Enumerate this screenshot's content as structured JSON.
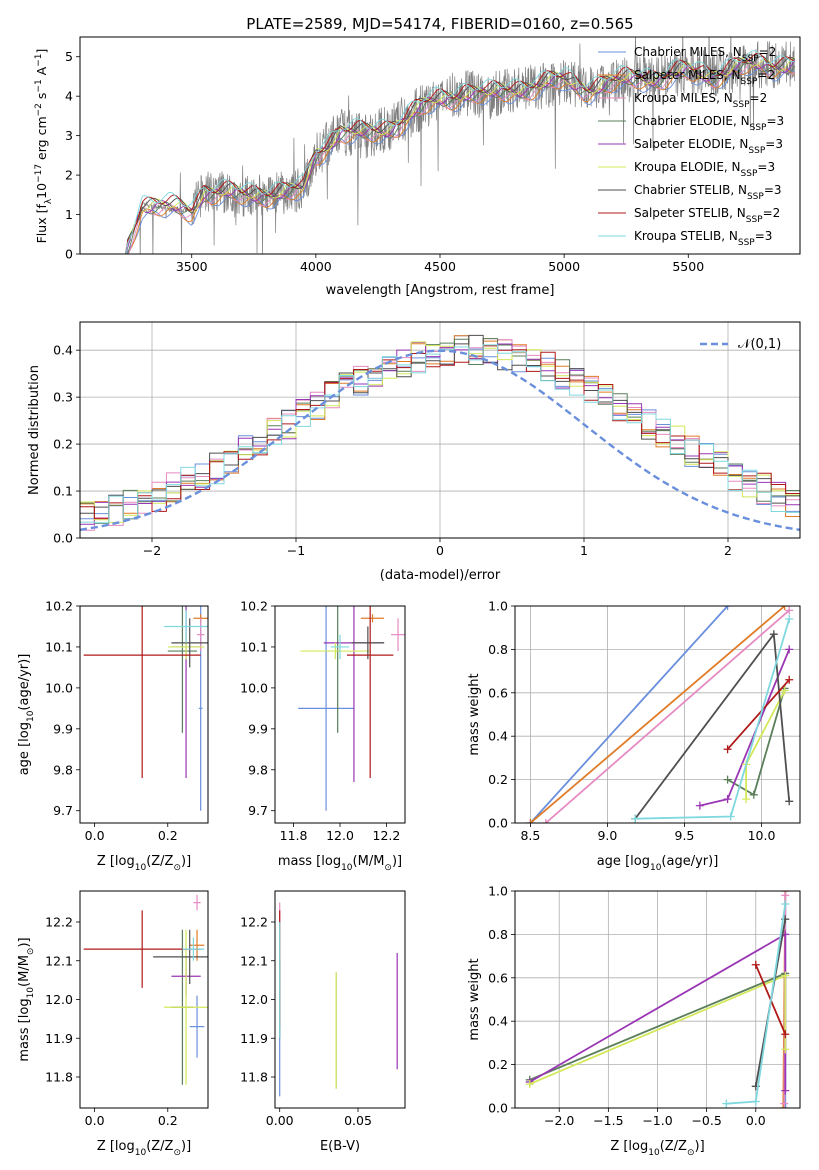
{
  "figure_title": "PLATE=2589, MJD=54174, FIBERID=0160, z=0.565",
  "colors": {
    "Chabrier MILES": "#6a8fdc",
    "Salpeter MILES": "#e07b27",
    "Kroupa MILES": "#e58bc2",
    "Chabrier ELODIE": "#5a7f5a",
    "Salpeter ELODIE": "#9a35b4",
    "Kroupa ELODIE": "#d3e85a",
    "Chabrier STELIB": "#4f4f4f",
    "Salpeter STELIB": "#b01818",
    "Kroupa STELIB": "#7fd8de",
    "data": "#808080"
  },
  "chart_data": [
    {
      "id": "spectrum",
      "type": "line",
      "xlabel": "wavelength [Angstrom, rest frame]",
      "ylabel": "Flux [f",
      "xlim": [
        3050,
        5950
      ],
      "ylim": [
        0,
        5.5
      ],
      "xticks": [
        3500,
        4000,
        4500,
        5000,
        5500
      ],
      "yticks": [
        0,
        1,
        2,
        3,
        4,
        5
      ],
      "legend_position": "top-right",
      "data_series": "observed spectrum",
      "model_curve": {
        "x": [
          3230,
          3300,
          3400,
          3500,
          3550,
          3650,
          3700,
          3800,
          3900,
          3950,
          4000,
          4100,
          4200,
          4300,
          4400,
          4500,
          4600,
          4700,
          4800,
          4900,
          5000,
          5100,
          5200,
          5300,
          5400,
          5500,
          5600,
          5700,
          5800
        ],
        "y": [
          0.0,
          1.25,
          1.15,
          1.1,
          1.6,
          1.5,
          1.45,
          1.55,
          1.55,
          1.6,
          2.5,
          3.1,
          3.0,
          3.2,
          3.6,
          3.9,
          4.1,
          4.0,
          4.2,
          4.25,
          4.4,
          4.2,
          4.3,
          4.5,
          4.45,
          4.6,
          4.55,
          4.7,
          4.8
        ]
      },
      "legend": [
        {
          "name": "Chabrier MILES",
          "nssp": "2"
        },
        {
          "name": "Salpeter MILES",
          "nssp": "2"
        },
        {
          "name": "Kroupa MILES",
          "nssp": "2"
        },
        {
          "name": "Chabrier ELODIE",
          "nssp": "3"
        },
        {
          "name": "Salpeter ELODIE",
          "nssp": "3"
        },
        {
          "name": "Kroupa ELODIE",
          "nssp": "3"
        },
        {
          "name": "Chabrier STELIB",
          "nssp": "3"
        },
        {
          "name": "Salpeter STELIB",
          "nssp": "2"
        },
        {
          "name": "Kroupa STELIB",
          "nssp": "3"
        }
      ]
    },
    {
      "id": "residuals",
      "type": "step",
      "xlabel": "(data-model)/error",
      "ylabel": "Normed distribution",
      "xlim": [
        -2.5,
        2.5
      ],
      "ylim": [
        0,
        0.46
      ],
      "xticks": [
        -2,
        -1,
        0,
        1,
        2
      ],
      "yticks": [
        0.0,
        0.1,
        0.2,
        0.3,
        0.4
      ],
      "grid": true,
      "legend_position": "top-right",
      "legend": [
        "𝒩(0,1)"
      ],
      "gaussian": {
        "mean": 0,
        "sigma": 1
      }
    },
    {
      "id": "age_vs_Z",
      "type": "errorbar",
      "xlabel": "Z [log",
      "ylabel": "age  [log",
      "xlim": [
        -0.04,
        0.31
      ],
      "ylim": [
        9.67,
        10.2
      ],
      "xticks": [
        0.0,
        0.2
      ],
      "yticks": [
        9.7,
        9.8,
        9.9,
        10.0,
        10.1,
        10.2
      ],
      "points": [
        {
          "model": "Chabrier MILES",
          "x": 0.29,
          "xerr": 0.005,
          "y": 9.95,
          "yerr": 0.25
        },
        {
          "model": "Salpeter MILES",
          "x": 0.29,
          "xerr": 0.02,
          "y": 10.17,
          "yerr": 0.01
        },
        {
          "model": "Kroupa MILES",
          "x": 0.29,
          "xerr": 0.01,
          "y": 10.13,
          "yerr": 0.04
        },
        {
          "model": "Chabrier ELODIE",
          "x": 0.24,
          "xerr": 0.04,
          "y": 10.09,
          "yerr": 0.2
        },
        {
          "model": "Salpeter ELODIE",
          "x": 0.25,
          "xerr": 0.04,
          "y": 10.1,
          "yerr": 0.32
        },
        {
          "model": "Kroupa ELODIE",
          "x": 0.25,
          "xerr": 0.05,
          "y": 10.1,
          "yerr": 0.03
        },
        {
          "model": "Chabrier STELIB",
          "x": 0.26,
          "xerr": 0.05,
          "y": 10.11,
          "yerr": 0.06
        },
        {
          "model": "Salpeter STELIB",
          "x": 0.13,
          "xerr": 0.16,
          "y": 10.08,
          "yerr": 0.3
        },
        {
          "model": "Kroupa STELIB",
          "x": 0.25,
          "xerr": 0.06,
          "y": 10.15,
          "yerr": 0.04
        }
      ]
    },
    {
      "id": "age_vs_mass",
      "type": "errorbar",
      "xlabel": "mass [log",
      "ylabel": "",
      "xlim": [
        11.72,
        12.28
      ],
      "ylim": [
        9.67,
        10.2
      ],
      "xticks": [
        11.8,
        12.0,
        12.2
      ],
      "yticks": [
        9.7,
        9.8,
        9.9,
        10.0,
        10.1,
        10.2
      ],
      "points": [
        {
          "model": "Chabrier MILES",
          "x": 11.94,
          "xerr": 0.12,
          "y": 9.95,
          "yerr": 0.25
        },
        {
          "model": "Salpeter MILES",
          "x": 12.14,
          "xerr": 0.05,
          "y": 10.17,
          "yerr": 0.01
        },
        {
          "model": "Kroupa MILES",
          "x": 12.25,
          "xerr": 0.03,
          "y": 10.13,
          "yerr": 0.04
        },
        {
          "model": "Chabrier ELODIE",
          "x": 11.99,
          "xerr": 0.01,
          "y": 10.09,
          "yerr": 0.2
        },
        {
          "model": "Salpeter ELODIE",
          "x": 12.06,
          "xerr": 0.13,
          "y": 10.11,
          "yerr": 0.34
        },
        {
          "model": "Kroupa ELODIE",
          "x": 11.98,
          "xerr": 0.15,
          "y": 10.09,
          "yerr": 0.02
        },
        {
          "model": "Chabrier STELIB",
          "x": 12.12,
          "xerr": 0.07,
          "y": 10.11,
          "yerr": 0.04
        },
        {
          "model": "Salpeter STELIB",
          "x": 12.13,
          "xerr": 0.1,
          "y": 10.08,
          "yerr": 0.3
        },
        {
          "model": "Kroupa STELIB",
          "x": 12.0,
          "xerr": 0.04,
          "y": 10.1,
          "yerr": 0.03
        }
      ]
    },
    {
      "id": "weight_vs_age",
      "type": "line",
      "xlabel": "age  [log",
      "ylabel": "mass weight",
      "xlim": [
        8.4,
        10.25
      ],
      "ylim": [
        0,
        1
      ],
      "xticks": [
        8.5,
        9.0,
        9.5,
        10.0
      ],
      "yticks": [
        0.0,
        0.2,
        0.4,
        0.6,
        0.8,
        1.0
      ],
      "grid": true,
      "series": [
        {
          "model": "Chabrier MILES",
          "x": [
            8.5,
            9.78
          ],
          "y": [
            0.0,
            1.0
          ]
        },
        {
          "model": "Salpeter MILES",
          "x": [
            8.5,
            10.15
          ],
          "y": [
            0.0,
            1.0
          ]
        },
        {
          "model": "Kroupa MILES",
          "x": [
            8.6,
            10.18
          ],
          "y": [
            0.0,
            0.98
          ]
        },
        {
          "model": "Chabrier ELODIE",
          "x": [
            9.78,
            9.95,
            10.15
          ],
          "y": [
            0.2,
            0.13,
            0.62
          ]
        },
        {
          "model": "Salpeter ELODIE",
          "x": [
            9.6,
            9.78,
            10.18
          ],
          "y": [
            0.08,
            0.11,
            0.8
          ]
        },
        {
          "model": "Kroupa ELODIE",
          "x": [
            9.9,
            9.9,
            10.15
          ],
          "y": [
            0.11,
            0.27,
            0.61
          ]
        },
        {
          "model": "Chabrier STELIB",
          "x": [
            9.18,
            10.08,
            10.18
          ],
          "y": [
            0.02,
            0.87,
            0.1
          ]
        },
        {
          "model": "Salpeter STELIB",
          "x": [
            9.78,
            10.18
          ],
          "y": [
            0.34,
            0.66
          ]
        },
        {
          "model": "Kroupa STELIB",
          "x": [
            9.18,
            9.8,
            10.18
          ],
          "y": [
            0.02,
            0.03,
            0.94
          ]
        }
      ]
    },
    {
      "id": "mass_vs_Z",
      "type": "errorbar",
      "xlabel": "Z [log",
      "ylabel": "mass [log",
      "xlim": [
        -0.04,
        0.31
      ],
      "ylim": [
        11.72,
        12.28
      ],
      "xticks": [
        0.0,
        0.2
      ],
      "yticks": [
        11.8,
        11.9,
        12.0,
        12.1,
        12.2
      ],
      "points": [
        {
          "model": "Chabrier MILES",
          "x": 0.28,
          "xerr": 0.02,
          "y": 11.93,
          "yerr": 0.08
        },
        {
          "model": "Salpeter MILES",
          "x": 0.28,
          "xerr": 0.02,
          "y": 12.14,
          "yerr": 0.04
        },
        {
          "model": "Kroupa MILES",
          "x": 0.28,
          "xerr": 0.01,
          "y": 12.25,
          "yerr": 0.02
        },
        {
          "model": "Chabrier ELODIE",
          "x": 0.24,
          "xerr": 0.03,
          "y": 11.98,
          "yerr": 0.2
        },
        {
          "model": "Salpeter ELODIE",
          "x": 0.25,
          "xerr": 0.04,
          "y": 12.06,
          "yerr": 0.05
        },
        {
          "model": "Kroupa ELODIE",
          "x": 0.25,
          "xerr": 0.06,
          "y": 11.98,
          "yerr": 0.2
        },
        {
          "model": "Chabrier STELIB",
          "x": 0.26,
          "xerr": 0.1,
          "y": 12.11,
          "yerr": 0.07
        },
        {
          "model": "Salpeter STELIB",
          "x": 0.13,
          "xerr": 0.16,
          "y": 12.13,
          "yerr": 0.1
        },
        {
          "model": "Kroupa STELIB",
          "x": 0.27,
          "xerr": 0.03,
          "y": 12.13,
          "yerr": 0.03
        }
      ]
    },
    {
      "id": "mass_vs_ebv",
      "type": "errorbar",
      "xlabel": "E(B-V)",
      "ylabel": "",
      "xlim": [
        -0.003,
        0.08
      ],
      "ylim": [
        11.72,
        12.28
      ],
      "xticks": [
        0.0,
        0.05
      ],
      "yticks": [
        11.8,
        11.9,
        12.0,
        12.1,
        12.2
      ],
      "points": [
        {
          "model": "Chabrier MILES",
          "x": 0.0,
          "xerr": 0,
          "y": 11.9,
          "yerr": 0.15
        },
        {
          "model": "Salpeter MILES",
          "x": 0.0,
          "xerr": 0,
          "y": 12.15,
          "yerr": 0.05
        },
        {
          "model": "Kroupa MILES",
          "x": 0.0,
          "xerr": 0,
          "y": 12.2,
          "yerr": 0.05
        },
        {
          "model": "Chabrier ELODIE",
          "x": 0.036,
          "xerr": 0,
          "y": 11.92,
          "yerr": 0.15
        },
        {
          "model": "Salpeter ELODIE",
          "x": 0.075,
          "xerr": 0,
          "y": 11.97,
          "yerr": 0.15
        },
        {
          "model": "Kroupa ELODIE",
          "x": 0.036,
          "xerr": 0,
          "y": 11.92,
          "yerr": 0.15
        },
        {
          "model": "Chabrier STELIB",
          "x": 0.0,
          "xerr": 0,
          "y": 12.0,
          "yerr": 0.1
        },
        {
          "model": "Salpeter STELIB",
          "x": 0.0,
          "xerr": 0,
          "y": 12.08,
          "yerr": 0.15
        },
        {
          "model": "Kroupa STELIB",
          "x": 0.0,
          "xerr": 0,
          "y": 12.05,
          "yerr": 0.15
        }
      ]
    },
    {
      "id": "weight_vs_Z",
      "type": "line",
      "xlabel": "Z [log",
      "ylabel": "mass weight",
      "xlim": [
        -2.45,
        0.45
      ],
      "ylim": [
        0,
        1
      ],
      "xticks": [
        -2.0,
        -1.5,
        -1.0,
        -0.5,
        0.0
      ],
      "yticks": [
        0.0,
        0.2,
        0.4,
        0.6,
        0.8,
        1.0
      ],
      "grid": true,
      "series": [
        {
          "model": "Chabrier MILES",
          "x": [
            0.3,
            0.3
          ],
          "y": [
            0.0,
            1.0
          ]
        },
        {
          "model": "Salpeter MILES",
          "x": [
            0.28,
            0.3
          ],
          "y": [
            0.0,
            1.0
          ]
        },
        {
          "model": "Kroupa MILES",
          "x": [
            0.29,
            0.3
          ],
          "y": [
            0.02,
            0.98
          ]
        },
        {
          "model": "Chabrier ELODIE",
          "x": [
            -2.3,
            0.3
          ],
          "y": [
            0.13,
            0.62
          ]
        },
        {
          "model": "Salpeter ELODIE",
          "x": [
            -2.3,
            0.3,
            0.3
          ],
          "y": [
            0.12,
            0.8,
            0.08
          ]
        },
        {
          "model": "Kroupa ELODIE",
          "x": [
            -2.3,
            0.3,
            0.3
          ],
          "y": [
            0.11,
            0.61,
            0.27
          ]
        },
        {
          "model": "Chabrier STELIB",
          "x": [
            0.0,
            0.3
          ],
          "y": [
            0.1,
            0.87
          ]
        },
        {
          "model": "Salpeter STELIB",
          "x": [
            0.0,
            0.3
          ],
          "y": [
            0.66,
            0.34
          ]
        },
        {
          "model": "Kroupa STELIB",
          "x": [
            -0.3,
            0.0,
            0.3
          ],
          "y": [
            0.02,
            0.03,
            0.94
          ]
        }
      ]
    }
  ]
}
